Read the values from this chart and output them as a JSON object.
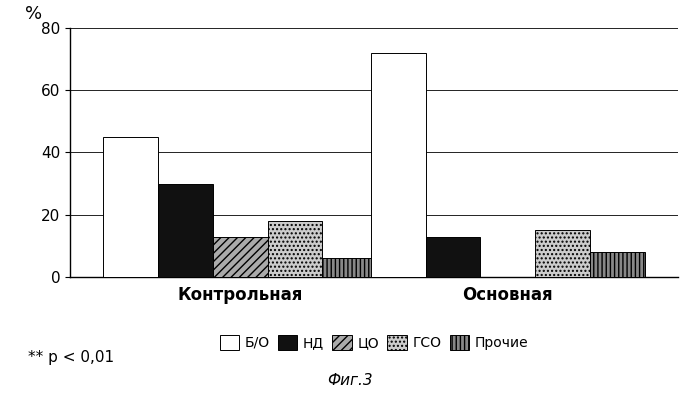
{
  "groups": [
    "Контрольная",
    "Основная"
  ],
  "categories": [
    "Б/О",
    "НД",
    "ЦО",
    "ГСО",
    "Прочие"
  ],
  "values_control": [
    45,
    30,
    13,
    18,
    6
  ],
  "values_main": [
    72,
    13,
    0,
    15,
    8
  ],
  "colors": [
    "#ffffff",
    "#111111",
    "#aaaaaa",
    "#cccccc",
    "#888888"
  ],
  "hatches": [
    "",
    "",
    "////",
    "....",
    "||||"
  ],
  "ylabel": "%",
  "ylim": [
    0,
    80
  ],
  "yticks": [
    0,
    20,
    40,
    60,
    80
  ],
  "bar_width": 0.09,
  "figsize": [
    6.99,
    3.96
  ],
  "dpi": 100,
  "annotation": "** p < 0,01",
  "figure_label": "Фиг.3",
  "legend_fontsize": 10,
  "axis_fontsize": 12
}
